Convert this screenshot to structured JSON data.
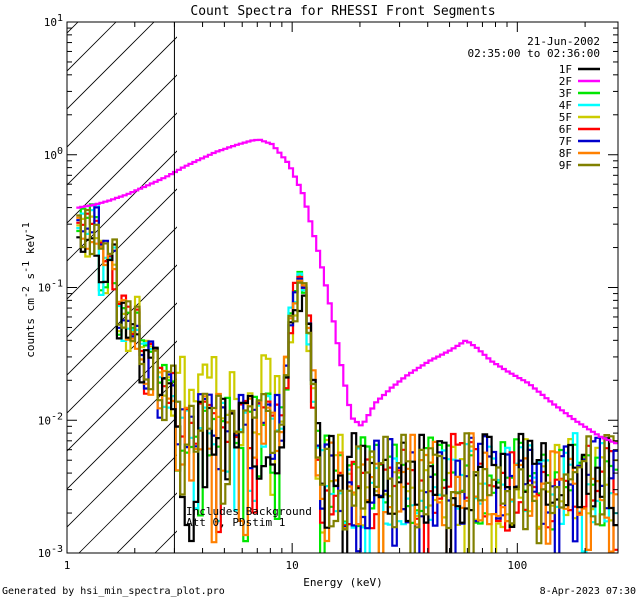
{
  "chart_data": {
    "type": "line",
    "title": "Count Spectra for RHESSI Front Segments",
    "xlabel": "Energy (keV)",
    "ylabel": "counts cm^-2 s^-1 keV^-1",
    "ylabel_parts": {
      "base": "counts cm",
      "e1": "-2",
      "mid": " s",
      "e2": "-1",
      "mid2": " keV",
      "e3": "-1"
    },
    "xscale": "log",
    "yscale": "log",
    "xlim": [
      1,
      280
    ],
    "ylim": [
      0.001,
      10
    ],
    "x_ticks": [
      {
        "value": 1,
        "label": "1"
      },
      {
        "value": 10,
        "label": "10"
      },
      {
        "value": 100,
        "label": "100"
      }
    ],
    "y_ticks": [
      {
        "value": 0.001,
        "base": "10",
        "exp": "-3"
      },
      {
        "value": 0.01,
        "base": "10",
        "exp": "-2"
      },
      {
        "value": 0.1,
        "base": "10",
        "exp": "-1"
      },
      {
        "value": 1,
        "base": "10",
        "exp": "0"
      },
      {
        "value": 10,
        "base": "10",
        "exp": "1"
      }
    ],
    "hatched_region": {
      "x_from": 1,
      "x_to": 3
    },
    "date": "21-Jun-2002",
    "time_range": "02:35:00 to 02:36:00",
    "annotations": [
      "Includes Background",
      "Att 0, PDstim 1"
    ],
    "legend_position": "top-right",
    "series": [
      {
        "name": "1F",
        "color": "#000000"
      },
      {
        "name": "2F",
        "color": "#ff00ff"
      },
      {
        "name": "3F",
        "color": "#00e600"
      },
      {
        "name": "4F",
        "color": "#00ffff"
      },
      {
        "name": "5F",
        "color": "#cccc00"
      },
      {
        "name": "6F",
        "color": "#ff0000"
      },
      {
        "name": "7F",
        "color": "#0000cc"
      },
      {
        "name": "8F",
        "color": "#ff8000"
      },
      {
        "name": "9F",
        "color": "#808000"
      }
    ],
    "series_2F_points": [
      [
        1.1,
        0.4
      ],
      [
        1.3,
        0.42
      ],
      [
        1.5,
        0.45
      ],
      [
        1.8,
        0.5
      ],
      [
        2.2,
        0.58
      ],
      [
        2.7,
        0.68
      ],
      [
        3.2,
        0.8
      ],
      [
        3.8,
        0.92
      ],
      [
        4.5,
        1.05
      ],
      [
        5.5,
        1.18
      ],
      [
        6.5,
        1.28
      ],
      [
        7.0,
        1.3
      ],
      [
        8.0,
        1.2
      ],
      [
        9.5,
        0.85
      ],
      [
        11,
        0.5
      ],
      [
        13,
        0.17
      ],
      [
        15,
        0.055
      ],
      [
        16.5,
        0.022
      ],
      [
        18,
        0.0105
      ],
      [
        20,
        0.009
      ],
      [
        23,
        0.0135
      ],
      [
        27,
        0.0175
      ],
      [
        32,
        0.022
      ],
      [
        40,
        0.028
      ],
      [
        50,
        0.034
      ],
      [
        58,
        0.04
      ],
      [
        65,
        0.035
      ],
      [
        75,
        0.028
      ],
      [
        90,
        0.023
      ],
      [
        110,
        0.019
      ],
      [
        140,
        0.0135
      ],
      [
        180,
        0.0098
      ],
      [
        230,
        0.0075
      ],
      [
        270,
        0.0067
      ]
    ],
    "noise_series_envelope": {
      "low_energy_values": [
        0.3,
        0.16,
        0.06,
        0.028,
        0.018
      ],
      "peak_energy_keV": 10.5,
      "peak_value": 0.12,
      "background_level_range": [
        0.0015,
        0.008
      ]
    }
  },
  "footer": {
    "left": "Generated by hsi_min_spectra_plot.pro",
    "right": "8-Apr-2023 07:30"
  }
}
